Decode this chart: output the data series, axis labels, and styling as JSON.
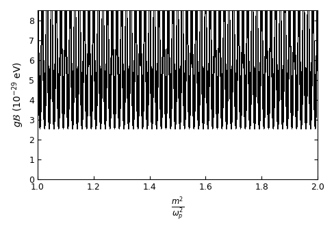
{
  "xlim": [
    1.0,
    2.0
  ],
  "ylim": [
    0.0,
    8.5
  ],
  "xlabel": "$\\frac{m^2}{\\omega_p^2}$",
  "ylabel": "$g\\mathcal{B}$ $(10^{-29}$ eV)",
  "xticks": [
    1.0,
    1.2,
    1.4,
    1.6,
    1.8,
    2.0
  ],
  "yticks": [
    0,
    1,
    2,
    3,
    4,
    5,
    6,
    7,
    8
  ],
  "figsize": [
    4.89,
    3.39
  ],
  "dpi": 100,
  "P_low": 0.005,
  "P_high": 0.02,
  "x_min": 1.0,
  "x_max": 2.0,
  "y_min": 0.0,
  "y_max": 8.5,
  "K": 188.5,
  "scale": 0.028
}
